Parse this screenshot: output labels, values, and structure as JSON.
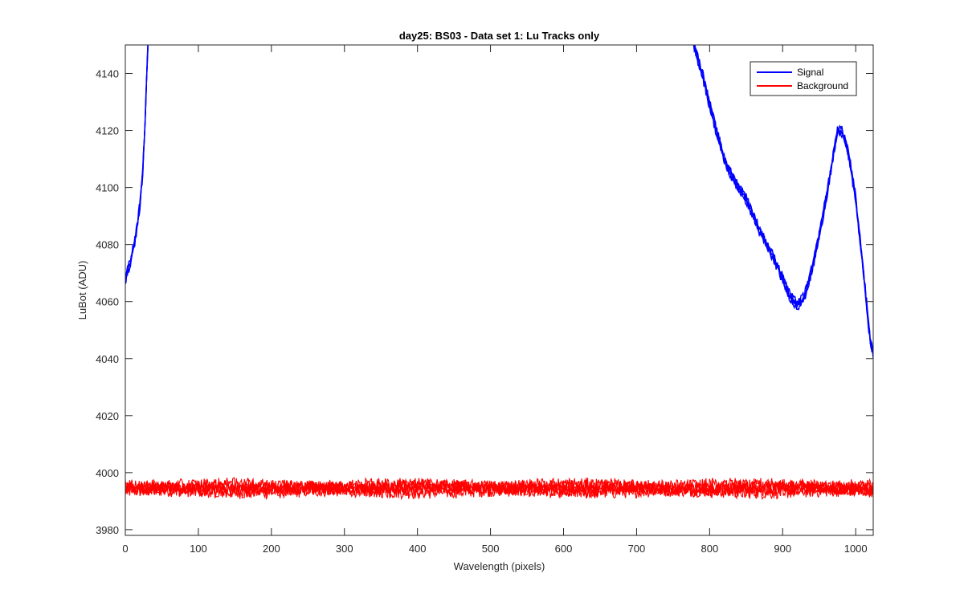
{
  "chart_data": {
    "type": "line",
    "title": "day25: BS03 - Data set 1: Lu Tracks only",
    "xlabel": "Wavelength (pixels)",
    "ylabel": "LuBot (ADU)",
    "xlim": [
      0,
      1024
    ],
    "ylim": [
      3978,
      4150
    ],
    "xticks": [
      0,
      100,
      200,
      300,
      400,
      500,
      600,
      700,
      800,
      900,
      1000
    ],
    "yticks": [
      3980,
      4000,
      4020,
      4040,
      4060,
      4080,
      4100,
      4120,
      4140
    ],
    "legend_location": "top-right",
    "series": [
      {
        "name": "Signal",
        "color": "#0000ff",
        "segments": [
          {
            "x": [
              0,
              5,
              10,
              15,
              20,
              24,
              27,
              29,
              31
            ],
            "y": [
              4068,
              4072,
              4078,
              4084,
              4094,
              4106,
              4122,
              4138,
              4150
            ]
          },
          {
            "x": [
              778,
              790,
              800,
              810,
              820,
              830,
              840,
              850,
              860,
              870,
              880,
              890,
              900,
              910,
              915,
              920,
              925,
              930,
              940,
              950,
              960,
              970,
              975,
              980,
              985,
              990,
              1000,
              1010,
              1015,
              1020,
              1024
            ],
            "y": [
              4150,
              4140,
              4129,
              4119,
              4110,
              4104,
              4100,
              4096,
              4090,
              4084,
              4079,
              4074,
              4068,
              4062,
              4060,
              4059,
              4060,
              4062,
              4071,
              4083,
              4097,
              4112,
              4120,
              4120,
              4117,
              4112,
              4096,
              4072,
              4059,
              4046,
              4042
            ]
          }
        ]
      },
      {
        "name": "Background",
        "color": "#ff0000",
        "base": 3994.5,
        "x_range": [
          0,
          1024
        ],
        "noise_amplitude": 2.3,
        "traces": 5
      }
    ]
  }
}
